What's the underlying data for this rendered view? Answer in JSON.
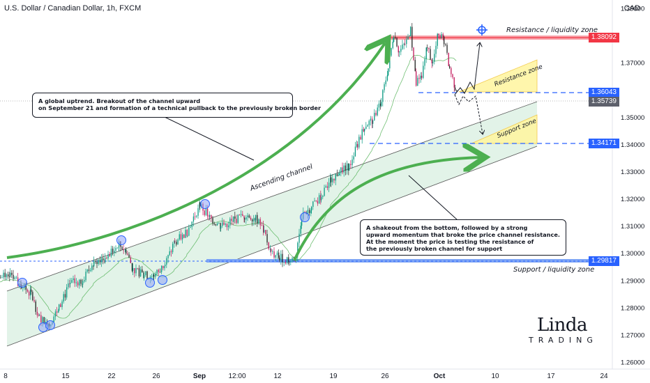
{
  "header": {
    "symbol": "U.S. Dollar / Canadian Dollar, 1h, FXCM",
    "currency": "CAD"
  },
  "callouts": {
    "top": {
      "line1": "A global uptrend. Breakout of the channel upward",
      "line2": "on September 21 and formation of a technical pullback to the previously broken border"
    },
    "bottom": {
      "line1": "A shakeout from the bottom, followed by a strong",
      "line2": "upward momentum that broke the price channel resistance.",
      "line3": "At the moment the price is testing the resistance of",
      "line4": "the previously broken channel for support"
    }
  },
  "labels": {
    "resistance_liquidity": "Resistance / liquidity zone",
    "support_liquidity": "Support / liquidity zone",
    "resistance_zone": "Resistance zone",
    "support_zone": "Support zone",
    "ascending_channel": "Ascending channel"
  },
  "logo": {
    "main": "Linda",
    "sub": "TRADING"
  },
  "colors": {
    "bull": "#089981",
    "bear": "#c2185b",
    "candle_dark": "#222222",
    "channel_fill": "#d8efe0",
    "arrow_green": "#4caf50",
    "resistance_red": "#f23645",
    "support_blue": "#2962ff",
    "zone_yellow": "#fff59d"
  },
  "chart_data": {
    "type": "line",
    "title": "U.S. Dollar / Canadian Dollar, 1h, FXCM",
    "y_axis_unit": "CAD",
    "ylim": [
      1.26,
      1.39
    ],
    "y_ticks": [
      1.39,
      1.37,
      1.35,
      1.34,
      1.33,
      1.32,
      1.31,
      1.3,
      1.29,
      1.28,
      1.27,
      1.26
    ],
    "y_tick_labels": [
      "1.39000",
      "1.37000",
      "1.35000",
      "1.34000",
      "1.33000",
      "1.32000",
      "1.31000",
      "1.30000",
      "1.29000",
      "1.28000",
      "1.27000",
      "1.26000"
    ],
    "x_tick_labels": [
      "8",
      "15",
      "22",
      "26",
      "Sep",
      "12:00",
      "12",
      "19",
      "26",
      "Oct",
      "10",
      "17",
      "24"
    ],
    "price_markers": [
      {
        "label": "1.38092",
        "value": 1.38092,
        "role": "resistance"
      },
      {
        "label": "1.36043",
        "value": 1.36043,
        "role": "level"
      },
      {
        "label": "1.35739",
        "value": 1.35739,
        "role": "current"
      },
      {
        "label": "1.34171",
        "value": 1.34171,
        "role": "level"
      },
      {
        "label": "1.29817",
        "value": 1.29817,
        "role": "support"
      }
    ],
    "price_path": {
      "x": [
        "8",
        "15",
        "22",
        "26",
        "Sep",
        "12:00",
        "12",
        "19",
        "26",
        "Oct"
      ],
      "values": [
        1.291,
        1.274,
        1.296,
        1.291,
        1.317,
        1.312,
        1.2985,
        1.328,
        1.38,
        1.3574
      ]
    }
  }
}
